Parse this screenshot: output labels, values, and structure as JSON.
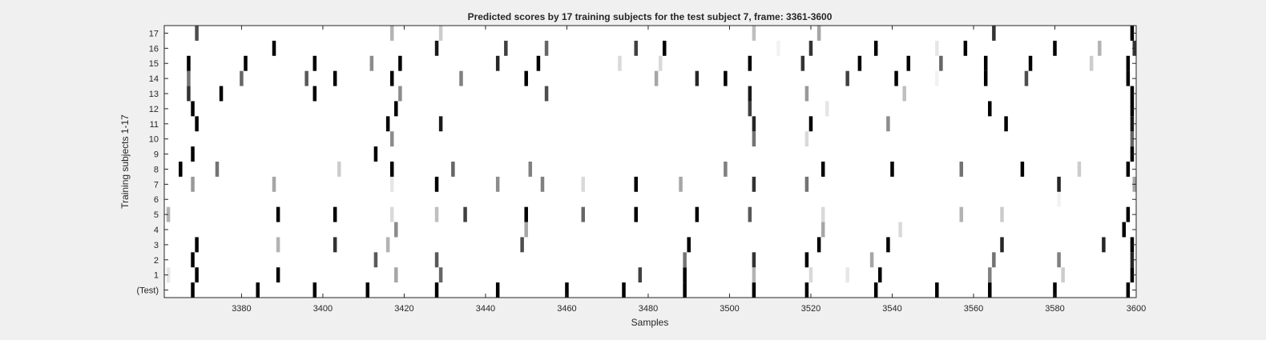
{
  "chart_data": {
    "type": "heatmap",
    "title": "Predicted scores by 17 training subjects for the test subject 7, frame: 3361-3600",
    "xlabel": "Samples",
    "ylabel": "Training subjects 1-17",
    "xlim": [
      3361,
      3600
    ],
    "xticks": [
      3380,
      3400,
      3420,
      3440,
      3460,
      3480,
      3500,
      3520,
      3540,
      3560,
      3580,
      3600
    ],
    "rows": [
      "(Test)",
      "1",
      "2",
      "3",
      "4",
      "5",
      "6",
      "7",
      "8",
      "9",
      "10",
      "11",
      "12",
      "13",
      "14",
      "15",
      "16",
      "17"
    ],
    "colormap": "white-to-black (score 0 = white, 1 = black)",
    "grid": false,
    "marks": [
      {
        "row": "(Test)",
        "x": 3368,
        "v": 1
      },
      {
        "row": "(Test)",
        "x": 3384,
        "v": 1
      },
      {
        "row": "(Test)",
        "x": 3398,
        "v": 1
      },
      {
        "row": "(Test)",
        "x": 3411,
        "v": 1
      },
      {
        "row": "(Test)",
        "x": 3428,
        "v": 1
      },
      {
        "row": "(Test)",
        "x": 3443,
        "v": 1
      },
      {
        "row": "(Test)",
        "x": 3460,
        "v": 1
      },
      {
        "row": "(Test)",
        "x": 3474,
        "v": 1
      },
      {
        "row": "(Test)",
        "x": 3489,
        "v": 1
      },
      {
        "row": "(Test)",
        "x": 3506,
        "v": 1
      },
      {
        "row": "(Test)",
        "x": 3519,
        "v": 1
      },
      {
        "row": "(Test)",
        "x": 3536,
        "v": 1
      },
      {
        "row": "(Test)",
        "x": 3551,
        "v": 1
      },
      {
        "row": "(Test)",
        "x": 3564,
        "v": 1
      },
      {
        "row": "(Test)",
        "x": 3580,
        "v": 1
      },
      {
        "row": "(Test)",
        "x": 3598,
        "v": 1
      },
      {
        "row": "1",
        "x": 3362,
        "v": 0.1
      },
      {
        "row": "1",
        "x": 3369,
        "v": 1
      },
      {
        "row": "1",
        "x": 3389,
        "v": 1
      },
      {
        "row": "1",
        "x": 3418,
        "v": 0.35
      },
      {
        "row": "1",
        "x": 3429,
        "v": 0.6
      },
      {
        "row": "1",
        "x": 3478,
        "v": 0.75
      },
      {
        "row": "1",
        "x": 3489,
        "v": 1
      },
      {
        "row": "1",
        "x": 3506,
        "v": 0.3
      },
      {
        "row": "1",
        "x": 3520,
        "v": 0.15
      },
      {
        "row": "1",
        "x": 3529,
        "v": 0.1
      },
      {
        "row": "1",
        "x": 3537,
        "v": 1
      },
      {
        "row": "1",
        "x": 3564,
        "v": 0.5
      },
      {
        "row": "1",
        "x": 3582,
        "v": 0.2
      },
      {
        "row": "1",
        "x": 3599,
        "v": 1
      },
      {
        "row": "2",
        "x": 3368,
        "v": 1
      },
      {
        "row": "2",
        "x": 3413,
        "v": 0.65
      },
      {
        "row": "2",
        "x": 3428,
        "v": 0.65
      },
      {
        "row": "2",
        "x": 3489,
        "v": 0.55
      },
      {
        "row": "2",
        "x": 3506,
        "v": 0.8
      },
      {
        "row": "2",
        "x": 3519,
        "v": 1
      },
      {
        "row": "2",
        "x": 3535,
        "v": 0.35
      },
      {
        "row": "2",
        "x": 3565,
        "v": 0.55
      },
      {
        "row": "2",
        "x": 3581,
        "v": 0.5
      },
      {
        "row": "2",
        "x": 3599,
        "v": 0.85
      },
      {
        "row": "3",
        "x": 3369,
        "v": 1
      },
      {
        "row": "3",
        "x": 3389,
        "v": 0.3
      },
      {
        "row": "3",
        "x": 3403,
        "v": 0.8
      },
      {
        "row": "3",
        "x": 3416,
        "v": 0.3
      },
      {
        "row": "3",
        "x": 3449,
        "v": 0.7
      },
      {
        "row": "3",
        "x": 3490,
        "v": 1
      },
      {
        "row": "3",
        "x": 3522,
        "v": 1
      },
      {
        "row": "3",
        "x": 3539,
        "v": 1
      },
      {
        "row": "3",
        "x": 3567,
        "v": 0.85
      },
      {
        "row": "3",
        "x": 3592,
        "v": 0.85
      },
      {
        "row": "3",
        "x": 3599,
        "v": 1
      },
      {
        "row": "4",
        "x": 3418,
        "v": 0.45
      },
      {
        "row": "4",
        "x": 3450,
        "v": 0.35
      },
      {
        "row": "4",
        "x": 3523,
        "v": 0.35
      },
      {
        "row": "4",
        "x": 3542,
        "v": 0.15
      },
      {
        "row": "4",
        "x": 3597,
        "v": 1
      },
      {
        "row": "5",
        "x": 3362,
        "v": 0.3
      },
      {
        "row": "5",
        "x": 3389,
        "v": 1
      },
      {
        "row": "5",
        "x": 3403,
        "v": 1
      },
      {
        "row": "5",
        "x": 3417,
        "v": 0.15
      },
      {
        "row": "5",
        "x": 3428,
        "v": 0.25
      },
      {
        "row": "5",
        "x": 3435,
        "v": 0.75
      },
      {
        "row": "5",
        "x": 3450,
        "v": 1
      },
      {
        "row": "5",
        "x": 3464,
        "v": 0.6
      },
      {
        "row": "5",
        "x": 3477,
        "v": 1
      },
      {
        "row": "5",
        "x": 3492,
        "v": 1
      },
      {
        "row": "5",
        "x": 3505,
        "v": 0.65
      },
      {
        "row": "5",
        "x": 3523,
        "v": 0.15
      },
      {
        "row": "5",
        "x": 3557,
        "v": 0.3
      },
      {
        "row": "5",
        "x": 3567,
        "v": 0.2
      },
      {
        "row": "5",
        "x": 3598,
        "v": 1
      },
      {
        "row": "6",
        "x": 3581,
        "v": 0.05
      },
      {
        "row": "7",
        "x": 3368,
        "v": 0.4
      },
      {
        "row": "7",
        "x": 3388,
        "v": 0.35
      },
      {
        "row": "7",
        "x": 3417,
        "v": 0.1
      },
      {
        "row": "7",
        "x": 3428,
        "v": 1
      },
      {
        "row": "7",
        "x": 3443,
        "v": 0.45
      },
      {
        "row": "7",
        "x": 3454,
        "v": 0.5
      },
      {
        "row": "7",
        "x": 3464,
        "v": 0.15
      },
      {
        "row": "7",
        "x": 3477,
        "v": 1
      },
      {
        "row": "7",
        "x": 3488,
        "v": 0.35
      },
      {
        "row": "7",
        "x": 3506,
        "v": 0.8
      },
      {
        "row": "7",
        "x": 3519,
        "v": 0.55
      },
      {
        "row": "7",
        "x": 3581,
        "v": 0.85
      },
      {
        "row": "7",
        "x": 3600,
        "v": 0.35
      },
      {
        "row": "8",
        "x": 3365,
        "v": 1
      },
      {
        "row": "8",
        "x": 3374,
        "v": 0.55
      },
      {
        "row": "8",
        "x": 3404,
        "v": 0.2
      },
      {
        "row": "8",
        "x": 3417,
        "v": 1
      },
      {
        "row": "8",
        "x": 3432,
        "v": 0.6
      },
      {
        "row": "8",
        "x": 3451,
        "v": 0.5
      },
      {
        "row": "8",
        "x": 3499,
        "v": 0.5
      },
      {
        "row": "8",
        "x": 3523,
        "v": 1
      },
      {
        "row": "8",
        "x": 3540,
        "v": 1
      },
      {
        "row": "8",
        "x": 3557,
        "v": 0.55
      },
      {
        "row": "8",
        "x": 3572,
        "v": 1
      },
      {
        "row": "8",
        "x": 3586,
        "v": 0.2
      },
      {
        "row": "8",
        "x": 3598,
        "v": 1
      },
      {
        "row": "9",
        "x": 3368,
        "v": 1
      },
      {
        "row": "9",
        "x": 3413,
        "v": 1
      },
      {
        "row": "9",
        "x": 3599,
        "v": 1
      },
      {
        "row": "10",
        "x": 3417,
        "v": 0.45
      },
      {
        "row": "10",
        "x": 3506,
        "v": 0.55
      },
      {
        "row": "10",
        "x": 3519,
        "v": 0.15
      },
      {
        "row": "10",
        "x": 3599,
        "v": 0.6
      },
      {
        "row": "11",
        "x": 3369,
        "v": 1
      },
      {
        "row": "11",
        "x": 3416,
        "v": 1
      },
      {
        "row": "11",
        "x": 3429,
        "v": 0.9
      },
      {
        "row": "11",
        "x": 3506,
        "v": 0.85
      },
      {
        "row": "11",
        "x": 3520,
        "v": 1
      },
      {
        "row": "11",
        "x": 3539,
        "v": 0.45
      },
      {
        "row": "11",
        "x": 3568,
        "v": 1
      },
      {
        "row": "11",
        "x": 3599,
        "v": 0.9
      },
      {
        "row": "12",
        "x": 3368,
        "v": 1
      },
      {
        "row": "12",
        "x": 3418,
        "v": 1
      },
      {
        "row": "12",
        "x": 3505,
        "v": 0.75
      },
      {
        "row": "12",
        "x": 3524,
        "v": 0.1
      },
      {
        "row": "12",
        "x": 3564,
        "v": 1
      },
      {
        "row": "12",
        "x": 3599,
        "v": 1
      },
      {
        "row": "13",
        "x": 3367,
        "v": 0.8
      },
      {
        "row": "13",
        "x": 3375,
        "v": 1
      },
      {
        "row": "13",
        "x": 3398,
        "v": 1
      },
      {
        "row": "13",
        "x": 3419,
        "v": 0.45
      },
      {
        "row": "13",
        "x": 3455,
        "v": 0.7
      },
      {
        "row": "13",
        "x": 3505,
        "v": 0.9
      },
      {
        "row": "13",
        "x": 3519,
        "v": 0.4
      },
      {
        "row": "13",
        "x": 3543,
        "v": 0.25
      },
      {
        "row": "13",
        "x": 3599,
        "v": 1
      },
      {
        "row": "14",
        "x": 3367,
        "v": 0.55
      },
      {
        "row": "14",
        "x": 3380,
        "v": 0.6
      },
      {
        "row": "14",
        "x": 3396,
        "v": 0.65
      },
      {
        "row": "14",
        "x": 3403,
        "v": 1
      },
      {
        "row": "14",
        "x": 3417,
        "v": 1
      },
      {
        "row": "14",
        "x": 3434,
        "v": 0.5
      },
      {
        "row": "14",
        "x": 3450,
        "v": 1
      },
      {
        "row": "14",
        "x": 3482,
        "v": 0.35
      },
      {
        "row": "14",
        "x": 3492,
        "v": 0.85
      },
      {
        "row": "14",
        "x": 3499,
        "v": 1
      },
      {
        "row": "14",
        "x": 3529,
        "v": 0.75
      },
      {
        "row": "14",
        "x": 3541,
        "v": 1
      },
      {
        "row": "14",
        "x": 3551,
        "v": 0.05
      },
      {
        "row": "14",
        "x": 3563,
        "v": 1
      },
      {
        "row": "14",
        "x": 3573,
        "v": 0.7
      },
      {
        "row": "14",
        "x": 3598,
        "v": 1
      },
      {
        "row": "15",
        "x": 3367,
        "v": 1
      },
      {
        "row": "15",
        "x": 3381,
        "v": 1
      },
      {
        "row": "15",
        "x": 3398,
        "v": 1
      },
      {
        "row": "15",
        "x": 3412,
        "v": 0.45
      },
      {
        "row": "15",
        "x": 3419,
        "v": 1
      },
      {
        "row": "15",
        "x": 3443,
        "v": 0.85
      },
      {
        "row": "15",
        "x": 3453,
        "v": 1
      },
      {
        "row": "15",
        "x": 3473,
        "v": 0.15
      },
      {
        "row": "15",
        "x": 3483,
        "v": 0.15
      },
      {
        "row": "15",
        "x": 3505,
        "v": 1
      },
      {
        "row": "15",
        "x": 3518,
        "v": 0.8
      },
      {
        "row": "15",
        "x": 3532,
        "v": 1
      },
      {
        "row": "15",
        "x": 3544,
        "v": 1
      },
      {
        "row": "15",
        "x": 3552,
        "v": 0.6
      },
      {
        "row": "15",
        "x": 3563,
        "v": 1
      },
      {
        "row": "15",
        "x": 3574,
        "v": 1
      },
      {
        "row": "15",
        "x": 3589,
        "v": 0.2
      },
      {
        "row": "15",
        "x": 3598,
        "v": 1
      },
      {
        "row": "16",
        "x": 3388,
        "v": 1
      },
      {
        "row": "16",
        "x": 3428,
        "v": 0.9
      },
      {
        "row": "16",
        "x": 3445,
        "v": 0.75
      },
      {
        "row": "16",
        "x": 3455,
        "v": 0.6
      },
      {
        "row": "16",
        "x": 3477,
        "v": 0.75
      },
      {
        "row": "16",
        "x": 3484,
        "v": 1
      },
      {
        "row": "16",
        "x": 3512,
        "v": 0.05
      },
      {
        "row": "16",
        "x": 3520,
        "v": 0.8
      },
      {
        "row": "16",
        "x": 3536,
        "v": 1
      },
      {
        "row": "16",
        "x": 3551,
        "v": 0.1
      },
      {
        "row": "16",
        "x": 3558,
        "v": 1
      },
      {
        "row": "16",
        "x": 3580,
        "v": 1
      },
      {
        "row": "16",
        "x": 3591,
        "v": 0.3
      },
      {
        "row": "16",
        "x": 3600,
        "v": 0.8
      },
      {
        "row": "17",
        "x": 3369,
        "v": 0.7
      },
      {
        "row": "17",
        "x": 3417,
        "v": 0.3
      },
      {
        "row": "17",
        "x": 3429,
        "v": 0.2
      },
      {
        "row": "17",
        "x": 3506,
        "v": 0.25
      },
      {
        "row": "17",
        "x": 3522,
        "v": 0.35
      },
      {
        "row": "17",
        "x": 3565,
        "v": 0.8
      },
      {
        "row": "17",
        "x": 3599,
        "v": 1
      }
    ]
  }
}
